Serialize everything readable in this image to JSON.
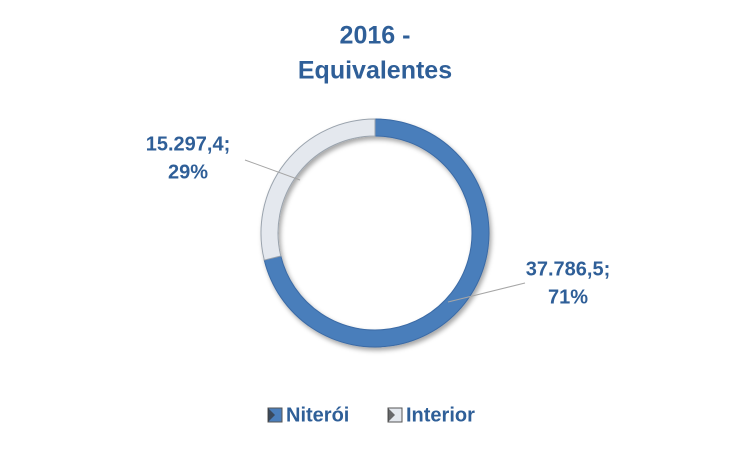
{
  "chart_data": {
    "type": "doughnut",
    "title": [
      "2016 -",
      "Equivalentes"
    ],
    "categories": [
      "Niterói",
      "Interior"
    ],
    "values": [
      37786.5,
      15297.4
    ],
    "value_labels": [
      [
        "37.786,5;",
        "71%"
      ],
      [
        "15.297,4;",
        "29%"
      ]
    ],
    "colors": [
      "#4a7ebb",
      "#e4e8ee"
    ],
    "legend": "bottom"
  }
}
